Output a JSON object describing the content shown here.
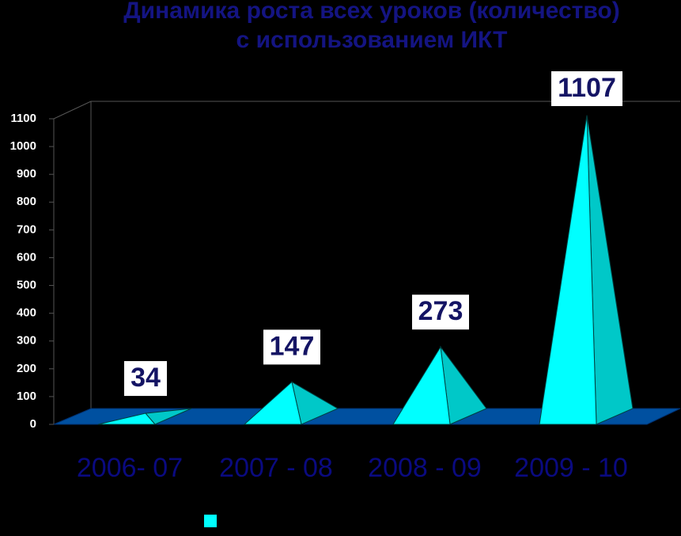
{
  "chart_data": {
    "type": "pyramid3d",
    "title": "Динамика роста всех уроков (количество)",
    "subtitle": "с использованием ИКТ",
    "categories": [
      "2006- 07",
      "2007 - 08",
      "2008 - 09",
      "2009 - 10"
    ],
    "values": [
      34,
      147,
      273,
      1107
    ],
    "color": "#00ffff",
    "side_color": "#00c8c8",
    "floor_color": "#0050a0",
    "ylim": [
      0,
      1100
    ],
    "yticks": [
      0,
      100,
      200,
      300,
      400,
      500,
      600,
      700,
      800,
      900,
      1000,
      1100
    ]
  }
}
